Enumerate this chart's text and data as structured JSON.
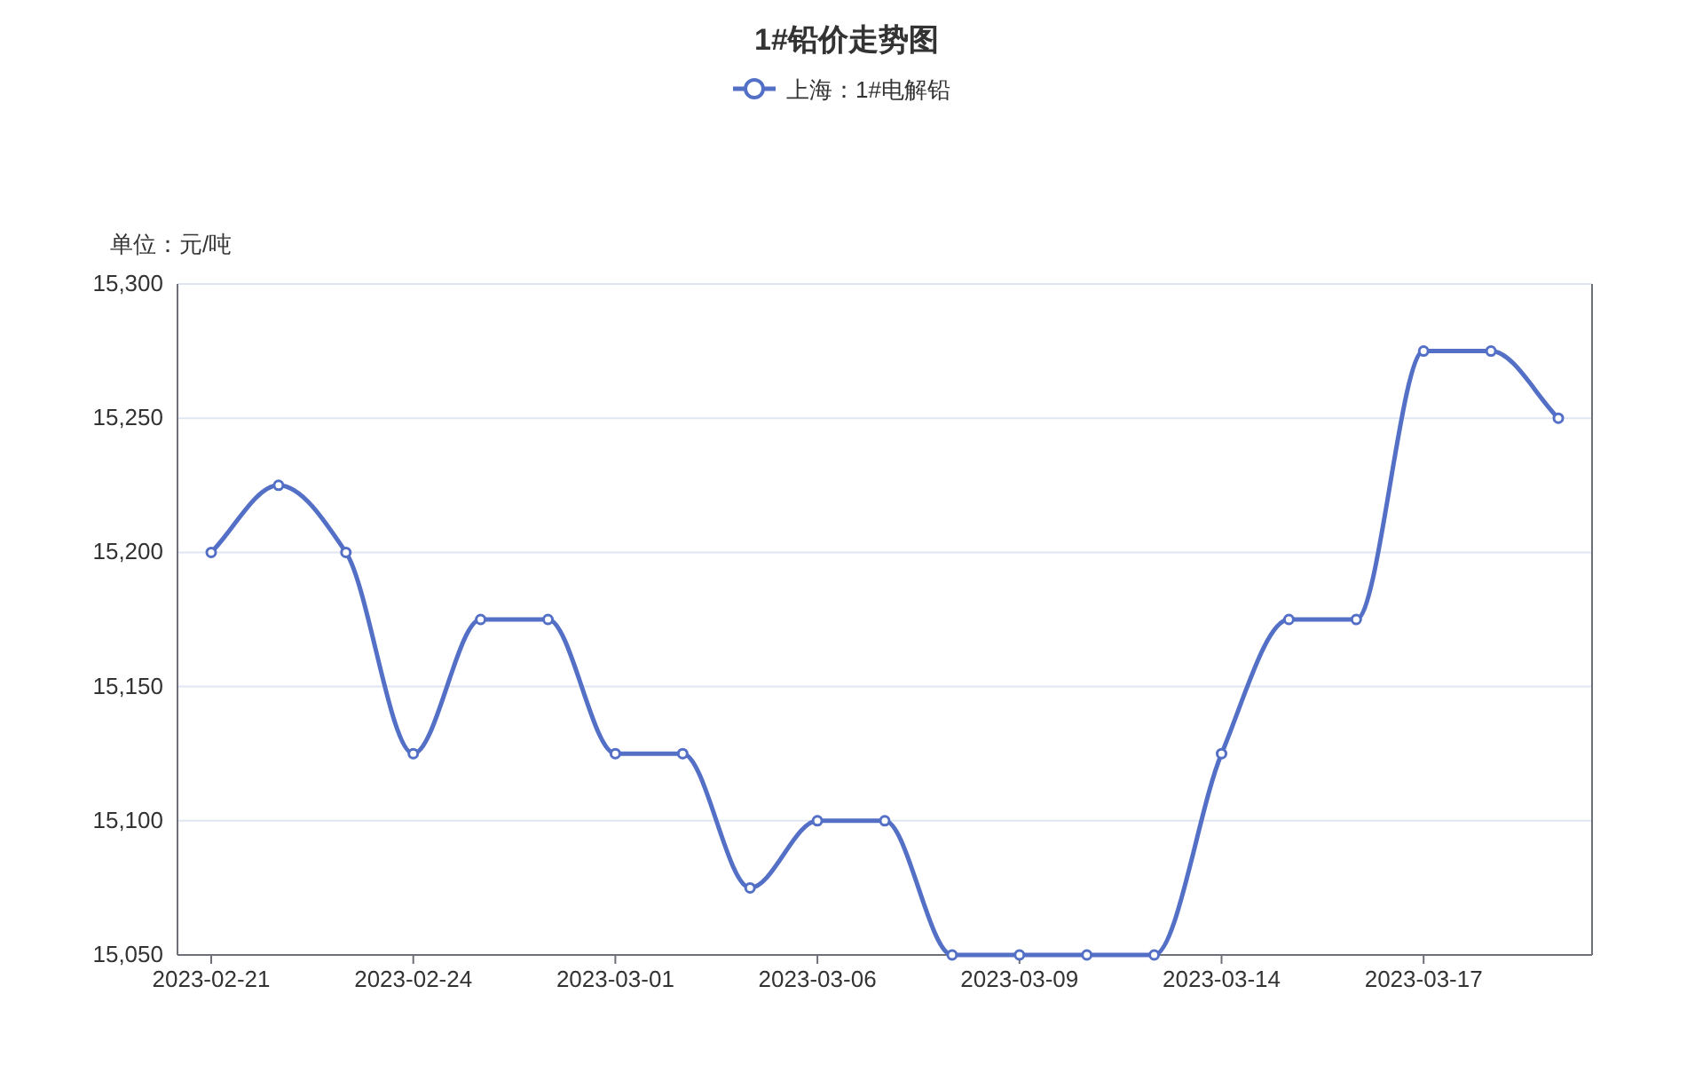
{
  "chart_data": {
    "type": "line",
    "title": "1#铅价走势图",
    "ylabel": "单位：元/吨",
    "categories": [
      "2023-02-21",
      null,
      null,
      "2023-02-24",
      null,
      null,
      "2023-03-01",
      null,
      null,
      "2023-03-06",
      null,
      null,
      "2023-03-09",
      null,
      null,
      "2023-03-14",
      null,
      null,
      "2023-03-17",
      null,
      null
    ],
    "series": [
      {
        "name": "上海：1#电解铅",
        "color": "#5470c6",
        "values": [
          15200,
          15225,
          15200,
          15125,
          15175,
          15175,
          15125,
          15125,
          15075,
          15100,
          15100,
          15050,
          15050,
          15050,
          15050,
          15125,
          15175,
          15175,
          15275,
          15275,
          15250
        ]
      }
    ],
    "ylim": [
      15050,
      15300
    ],
    "yticks": [
      {
        "value": 15050,
        "label": "15,050"
      },
      {
        "value": 15100,
        "label": "15,100"
      },
      {
        "value": 15150,
        "label": "15,150"
      },
      {
        "value": 15200,
        "label": "15,200"
      },
      {
        "value": 15250,
        "label": "15,250"
      },
      {
        "value": 15300,
        "label": "15,300"
      }
    ],
    "grid": "y",
    "legend": "top",
    "marker": "circle",
    "line_style": "solid"
  }
}
